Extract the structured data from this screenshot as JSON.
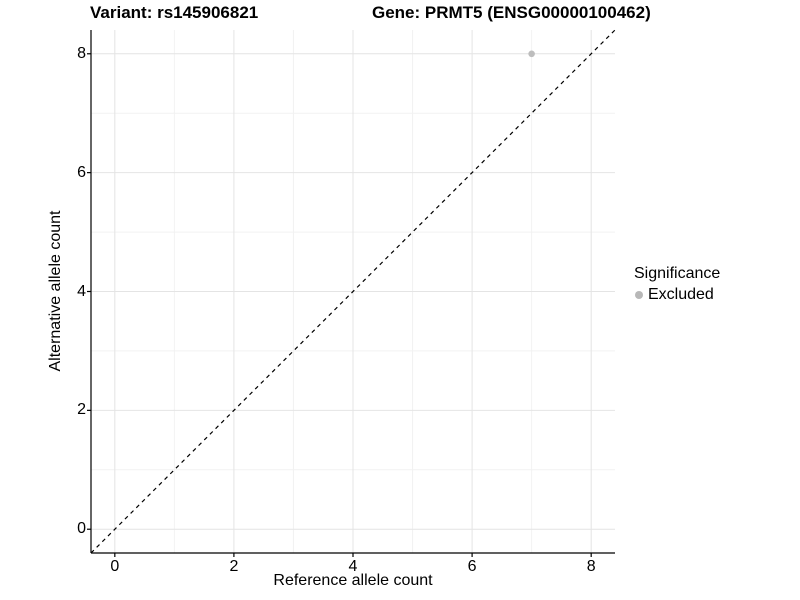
{
  "titles": {
    "variant": "Variant: rs145906821",
    "gene": "Gene: PRMT5 (ENSG00000100462)"
  },
  "axes": {
    "x_title": "Reference allele count",
    "y_title": "Alternative allele count",
    "x_tick_labels": [
      "0",
      "2",
      "4",
      "6",
      "8"
    ],
    "y_tick_labels": [
      "0",
      "2",
      "4",
      "6",
      "8"
    ]
  },
  "legend": {
    "title": "Significance",
    "items": [
      {
        "label": "Excluded",
        "color": "#b8b8b8"
      }
    ]
  },
  "colors": {
    "background": "#ffffff",
    "axis_line": "#000000",
    "text": "#000000",
    "grid_major": "#e4e4e4",
    "grid_minor": "#f2f2f2",
    "point": "#bdbdbd",
    "reference_line": "#000000"
  },
  "chart_data": {
    "type": "scatter",
    "title": "Variant: rs145906821   Gene: PRMT5 (ENSG00000100462)",
    "xlabel": "Reference allele count",
    "ylabel": "Alternative allele count",
    "xlim": [
      -0.4,
      8.4
    ],
    "ylim": [
      -0.4,
      8.4
    ],
    "x_ticks": [
      0,
      2,
      4,
      6,
      8
    ],
    "y_ticks": [
      0,
      2,
      4,
      6,
      8
    ],
    "x_minor_ticks": [
      1,
      3,
      5,
      7
    ],
    "y_minor_ticks": [
      1,
      3,
      5,
      7
    ],
    "grid": true,
    "legend_position": "right",
    "series": [
      {
        "name": "Excluded",
        "color": "#bdbdbd",
        "points": [
          {
            "x": 7,
            "y": 8
          }
        ],
        "point_radius": 3.3
      }
    ],
    "reference_line": {
      "type": "identity",
      "style": "dashed",
      "from": [
        -0.4,
        -0.4
      ],
      "to": [
        8.4,
        8.4
      ],
      "color": "#000000"
    }
  }
}
